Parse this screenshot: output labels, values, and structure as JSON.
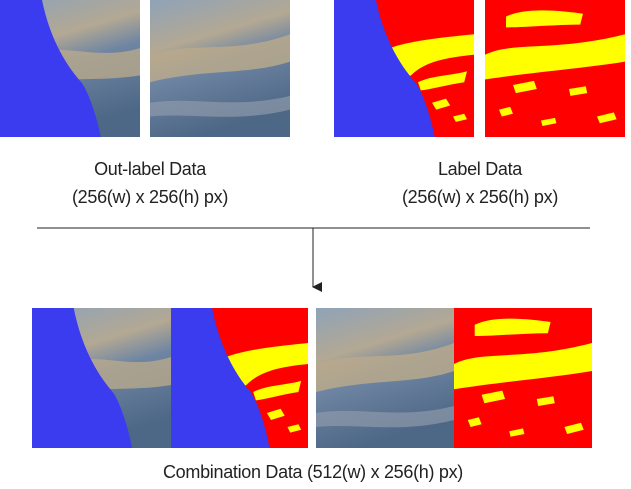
{
  "left_caption": {
    "title": "Out-label Data",
    "size": "(256(w) x 256(h) px)"
  },
  "right_caption": {
    "title": "Label Data",
    "size": "(256(w) x 256(h) px)"
  },
  "bottom_caption": "Combination Data (512(w) x 256(h) px)"
}
